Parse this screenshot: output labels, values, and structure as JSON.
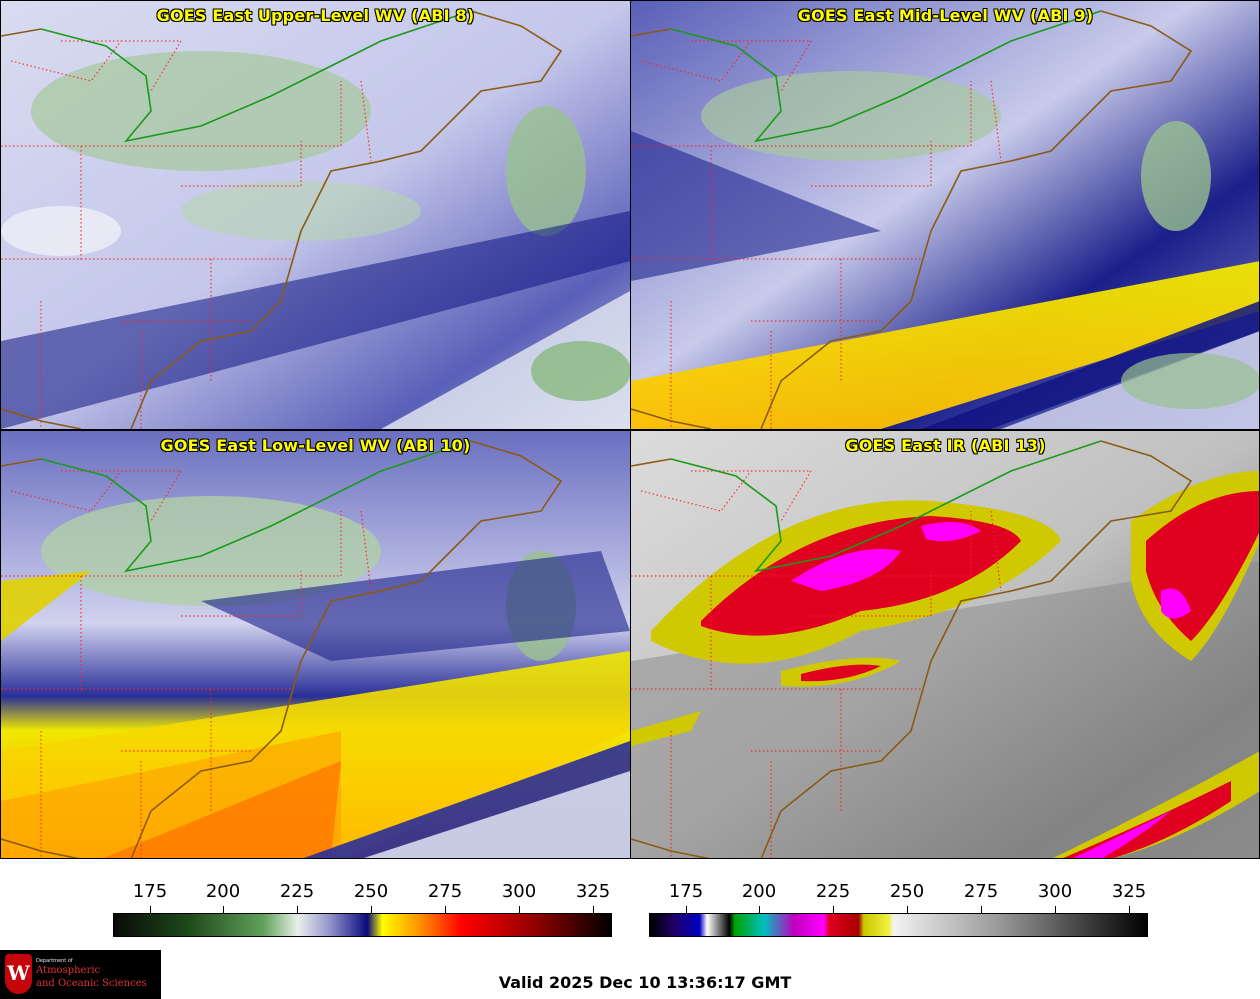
{
  "panels": [
    {
      "id": "upper",
      "title": "GOES East Upper-Level WV (ABI 8)"
    },
    {
      "id": "mid",
      "title": "GOES East Mid-Level WV (ABI 9)"
    },
    {
      "id": "low",
      "title": "GOES East Low-Level WV (ABI 10)"
    },
    {
      "id": "ir",
      "title": "GOES East IR (ABI 13)"
    }
  ],
  "colorbars": [
    {
      "name": "water-vapor",
      "ticks": [
        "175",
        "200",
        "225",
        "250",
        "275",
        "300",
        "325"
      ],
      "range": [
        163,
        331
      ]
    },
    {
      "name": "infrared",
      "ticks": [
        "175",
        "200",
        "225",
        "250",
        "275",
        "300",
        "325"
      ],
      "range": [
        163,
        331
      ]
    }
  ],
  "colors": {
    "map_border": "#8b5a14",
    "state_lines": "#ff2020",
    "us_canada": "#009a00",
    "title_text": "#ffff00"
  },
  "valid_time": "Valid 2025 Dec 10 13:36:17 GMT",
  "logo": {
    "letter": "W",
    "dept": "Department of",
    "line1": "Atmospheric",
    "line2": "and Oceanic Sciences"
  }
}
